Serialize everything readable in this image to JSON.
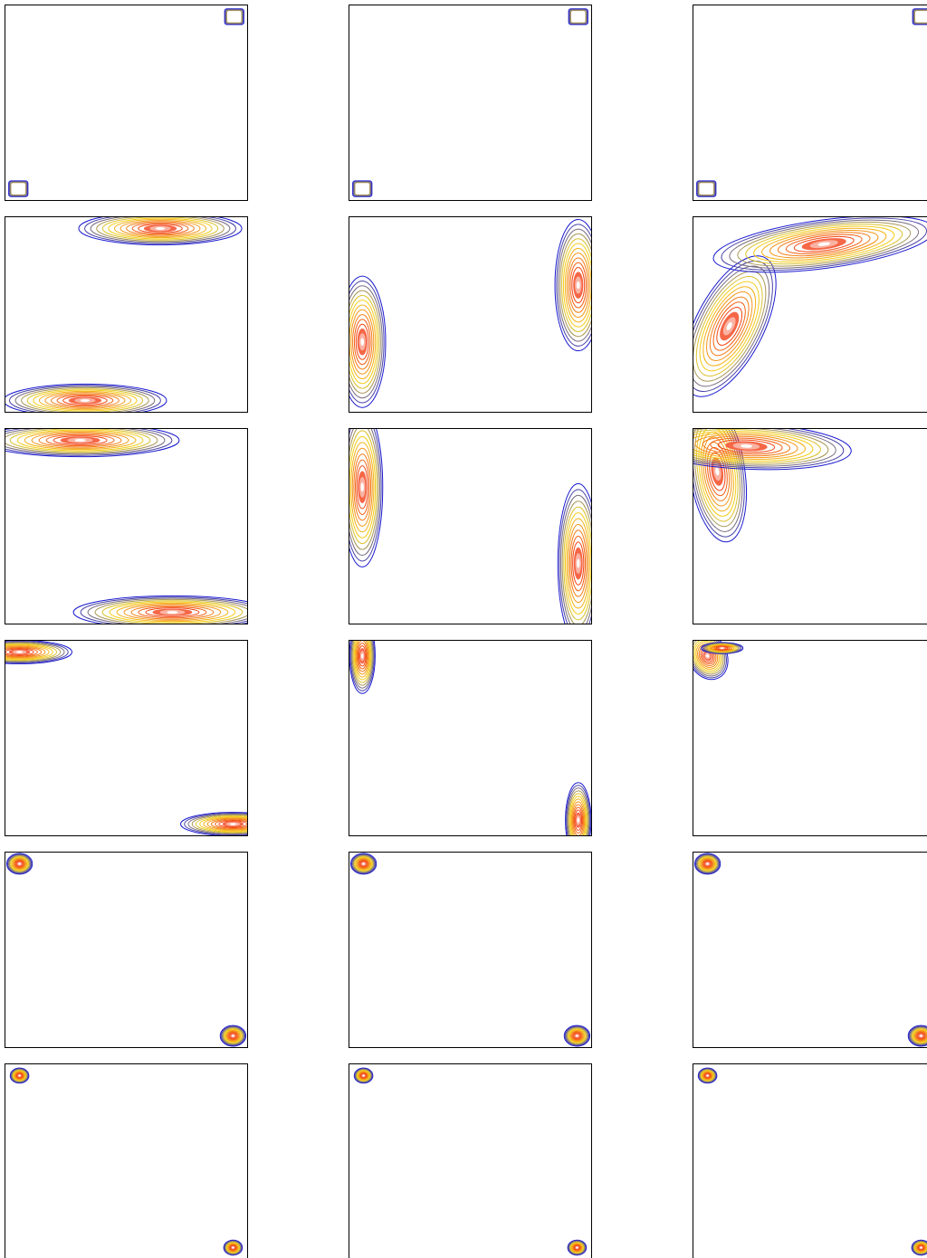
{
  "figure": {
    "title": "",
    "colors": {
      "outer_contour": "#1a1ad0",
      "mid_contour": "#f5d91c",
      "inner_contour": "#f23a10",
      "peak": "#ffffff",
      "axes": "#000000"
    },
    "contour_levels": 14
  },
  "chart_data": [
    {
      "type": "contour",
      "row": 1,
      "col": 1,
      "xlim": [
        0,
        1
      ],
      "ylim": [
        0,
        1
      ],
      "grid": false,
      "modes": [
        {
          "x": 0.055,
          "y": 0.06,
          "sx": 0.03,
          "sy": 0.03,
          "rho": 0,
          "weight": 1,
          "shape": "square"
        },
        {
          "x": 0.945,
          "y": 0.94,
          "sx": 0.03,
          "sy": 0.03,
          "rho": 0,
          "weight": 1,
          "shape": "square"
        }
      ]
    },
    {
      "type": "contour",
      "row": 1,
      "col": 2,
      "xlim": [
        0,
        1
      ],
      "ylim": [
        0,
        1
      ],
      "grid": false,
      "modes": [
        {
          "x": 0.055,
          "y": 0.06,
          "sx": 0.03,
          "sy": 0.03,
          "rho": 0,
          "weight": 1,
          "shape": "square"
        },
        {
          "x": 0.945,
          "y": 0.94,
          "sx": 0.03,
          "sy": 0.03,
          "rho": 0,
          "weight": 1,
          "shape": "square"
        }
      ]
    },
    {
      "type": "contour",
      "row": 1,
      "col": 3,
      "xlim": [
        0,
        1
      ],
      "ylim": [
        0,
        1
      ],
      "grid": false,
      "modes": [
        {
          "x": 0.055,
          "y": 0.06,
          "sx": 0.03,
          "sy": 0.03,
          "rho": 0,
          "weight": 1,
          "shape": "square"
        },
        {
          "x": 0.945,
          "y": 0.94,
          "sx": 0.03,
          "sy": 0.03,
          "rho": 0,
          "weight": 1,
          "shape": "square"
        }
      ]
    },
    {
      "type": "contour",
      "row": 2,
      "col": 1,
      "xlim": [
        0,
        1
      ],
      "ylim": [
        0,
        1
      ],
      "grid": false,
      "modes": [
        {
          "x": 0.33,
          "y": 0.06,
          "sx": 0.14,
          "sy": 0.035,
          "rho": 0,
          "weight": 1
        },
        {
          "x": 0.64,
          "y": 0.94,
          "sx": 0.14,
          "sy": 0.035,
          "rho": 0,
          "weight": 1
        }
      ]
    },
    {
      "type": "contour",
      "row": 2,
      "col": 2,
      "xlim": [
        0,
        1
      ],
      "ylim": [
        0,
        1
      ],
      "grid": false,
      "modes": [
        {
          "x": 0.055,
          "y": 0.36,
          "sx": 0.04,
          "sy": 0.14,
          "rho": 0,
          "weight": 1
        },
        {
          "x": 0.945,
          "y": 0.65,
          "sx": 0.04,
          "sy": 0.14,
          "rho": 0,
          "weight": 1
        }
      ]
    },
    {
      "type": "contour",
      "row": 2,
      "col": 3,
      "xlim": [
        0,
        1
      ],
      "ylim": [
        0,
        1
      ],
      "grid": false,
      "modes": [
        {
          "x": 0.15,
          "y": 0.44,
          "sx": 0.08,
          "sy": 0.15,
          "rho": 0.6,
          "weight": 1
        },
        {
          "x": 0.54,
          "y": 0.86,
          "sx": 0.19,
          "sy": 0.06,
          "rho": 0.5,
          "weight": 1
        }
      ]
    },
    {
      "type": "contour",
      "row": 3,
      "col": 1,
      "xlim": [
        0,
        1
      ],
      "ylim": [
        0,
        1
      ],
      "grid": false,
      "modes": [
        {
          "x": 0.31,
          "y": 0.94,
          "sx": 0.17,
          "sy": 0.035,
          "rho": 0,
          "weight": 1
        },
        {
          "x": 0.69,
          "y": 0.06,
          "sx": 0.17,
          "sy": 0.035,
          "rho": 0,
          "weight": 1
        }
      ]
    },
    {
      "type": "contour",
      "row": 3,
      "col": 2,
      "xlim": [
        0,
        1
      ],
      "ylim": [
        0,
        1
      ],
      "grid": false,
      "modes": [
        {
          "x": 0.055,
          "y": 0.7,
          "sx": 0.035,
          "sy": 0.17,
          "rho": 0,
          "weight": 1
        },
        {
          "x": 0.945,
          "y": 0.31,
          "sx": 0.035,
          "sy": 0.17,
          "rho": 0,
          "weight": 1
        }
      ]
    },
    {
      "type": "contour",
      "row": 3,
      "col": 3,
      "xlim": [
        0,
        1
      ],
      "ylim": [
        0,
        1
      ],
      "grid": false,
      "modes": [
        {
          "x": 0.1,
          "y": 0.78,
          "sx": 0.05,
          "sy": 0.15,
          "rho": -0.3,
          "weight": 1
        },
        {
          "x": 0.22,
          "y": 0.91,
          "sx": 0.18,
          "sy": 0.05,
          "rho": -0.2,
          "weight": 1
        }
      ]
    },
    {
      "type": "contour",
      "row": 4,
      "col": 1,
      "xlim": [
        0,
        1
      ],
      "ylim": [
        0,
        1
      ],
      "grid": false,
      "modes": [
        {
          "x": 0.06,
          "y": 0.94,
          "sx": 0.09,
          "sy": 0.025,
          "rho": 0,
          "weight": 1
        },
        {
          "x": 0.94,
          "y": 0.06,
          "sx": 0.09,
          "sy": 0.025,
          "rho": 0,
          "weight": 1
        }
      ]
    },
    {
      "type": "contour",
      "row": 4,
      "col": 2,
      "xlim": [
        0,
        1
      ],
      "ylim": [
        0,
        1
      ],
      "grid": false,
      "modes": [
        {
          "x": 0.055,
          "y": 0.92,
          "sx": 0.022,
          "sy": 0.08,
          "rho": 0,
          "weight": 1
        },
        {
          "x": 0.945,
          "y": 0.08,
          "sx": 0.022,
          "sy": 0.08,
          "rho": 0,
          "weight": 1
        }
      ]
    },
    {
      "type": "contour",
      "row": 4,
      "col": 3,
      "xlim": [
        0,
        1
      ],
      "ylim": [
        0,
        1
      ],
      "grid": false,
      "modes": [
        {
          "x": 0.06,
          "y": 0.92,
          "sx": 0.035,
          "sy": 0.05,
          "rho": -0.2,
          "weight": 1
        },
        {
          "x": 0.12,
          "y": 0.96,
          "sx": 0.06,
          "sy": 0.02,
          "rho": 0,
          "weight": 0.6
        }
      ]
    },
    {
      "type": "contour",
      "row": 5,
      "col": 1,
      "xlim": [
        0,
        1
      ],
      "ylim": [
        0,
        1
      ],
      "grid": false,
      "modes": [
        {
          "x": 0.06,
          "y": 0.94,
          "sx": 0.022,
          "sy": 0.022,
          "rho": 0,
          "weight": 1
        },
        {
          "x": 0.94,
          "y": 0.06,
          "sx": 0.022,
          "sy": 0.022,
          "rho": 0,
          "weight": 1
        }
      ]
    },
    {
      "type": "contour",
      "row": 5,
      "col": 2,
      "xlim": [
        0,
        1
      ],
      "ylim": [
        0,
        1
      ],
      "grid": false,
      "modes": [
        {
          "x": 0.06,
          "y": 0.94,
          "sx": 0.022,
          "sy": 0.022,
          "rho": 0,
          "weight": 1
        },
        {
          "x": 0.94,
          "y": 0.06,
          "sx": 0.022,
          "sy": 0.022,
          "rho": 0,
          "weight": 1
        }
      ]
    },
    {
      "type": "contour",
      "row": 5,
      "col": 3,
      "xlim": [
        0,
        1
      ],
      "ylim": [
        0,
        1
      ],
      "grid": false,
      "modes": [
        {
          "x": 0.06,
          "y": 0.94,
          "sx": 0.022,
          "sy": 0.022,
          "rho": 0,
          "weight": 1
        },
        {
          "x": 0.94,
          "y": 0.06,
          "sx": 0.022,
          "sy": 0.022,
          "rho": 0,
          "weight": 1
        }
      ]
    },
    {
      "type": "contour",
      "row": 6,
      "col": 1,
      "xlim": [
        0,
        1
      ],
      "ylim": [
        0,
        1
      ],
      "grid": false,
      "modes": [
        {
          "x": 0.06,
          "y": 0.94,
          "sx": 0.016,
          "sy": 0.016,
          "rho": 0,
          "weight": 1
        },
        {
          "x": 0.94,
          "y": 0.06,
          "sx": 0.016,
          "sy": 0.016,
          "rho": 0,
          "weight": 1
        }
      ]
    },
    {
      "type": "contour",
      "row": 6,
      "col": 2,
      "xlim": [
        0,
        1
      ],
      "ylim": [
        0,
        1
      ],
      "grid": false,
      "modes": [
        {
          "x": 0.06,
          "y": 0.94,
          "sx": 0.016,
          "sy": 0.016,
          "rho": 0,
          "weight": 1
        },
        {
          "x": 0.94,
          "y": 0.06,
          "sx": 0.016,
          "sy": 0.016,
          "rho": 0,
          "weight": 1
        }
      ]
    },
    {
      "type": "contour",
      "row": 6,
      "col": 3,
      "xlim": [
        0,
        1
      ],
      "ylim": [
        0,
        1
      ],
      "grid": false,
      "modes": [
        {
          "x": 0.06,
          "y": 0.94,
          "sx": 0.016,
          "sy": 0.016,
          "rho": 0,
          "weight": 1
        },
        {
          "x": 0.94,
          "y": 0.06,
          "sx": 0.016,
          "sy": 0.016,
          "rho": 0,
          "weight": 1
        }
      ]
    }
  ]
}
